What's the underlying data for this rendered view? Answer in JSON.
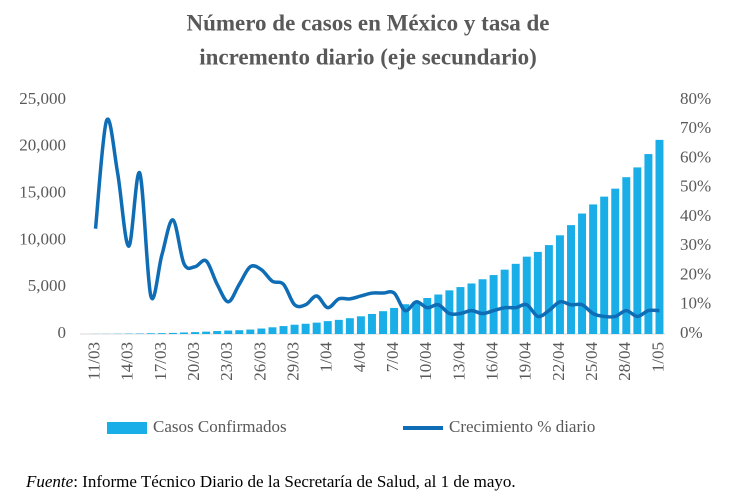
{
  "chart_data": {
    "type": "bar-line",
    "title": [
      "Número de casos en México y tasa de",
      "incremento diario (eje secundario)"
    ],
    "categories": [
      "11/03",
      null,
      null,
      "14/03",
      null,
      null,
      "17/03",
      null,
      null,
      "20/03",
      null,
      null,
      "23/03",
      null,
      null,
      "26/03",
      null,
      null,
      "29/03",
      null,
      null,
      "1/04",
      null,
      null,
      "4/04",
      null,
      null,
      "7/04",
      null,
      null,
      "10/04",
      null,
      null,
      "13/04",
      null,
      null,
      "16/04",
      null,
      null,
      "19/04",
      null,
      null,
      "22/04",
      null,
      null,
      "25/04",
      null,
      null,
      "28/04",
      null,
      null,
      "1/05"
    ],
    "series": [
      {
        "name": "Casos Confirmados",
        "type": "bar",
        "color": "#1aaee8",
        "values": [
          12,
          15,
          26,
          41,
          53,
          82,
          93,
          118,
          164,
          203,
          251,
          316,
          367,
          405,
          475,
          585,
          717,
          848,
          993,
          1094,
          1215,
          1378,
          1510,
          1688,
          1890,
          2143,
          2439,
          2785,
          3181,
          3441,
          3844,
          4219,
          4661,
          5014,
          5399,
          5847,
          6297,
          6875,
          7497,
          8261,
          8772,
          9501,
          10544,
          11633,
          12872,
          13842,
          14677,
          15529,
          16752,
          17799,
          19224,
          20739
        ]
      },
      {
        "name": "Crecimiento % diario",
        "type": "line",
        "axis": "y2",
        "color": "#0f6db5",
        "values": [
          36,
          73,
          55,
          30,
          55,
          13,
          27,
          39,
          24,
          23,
          25,
          17,
          11,
          17,
          23,
          22,
          18,
          17,
          10,
          10,
          13,
          9,
          12,
          12,
          13,
          14,
          14,
          14,
          8,
          11,
          9,
          10,
          7,
          7,
          8,
          7,
          8,
          9,
          9,
          10,
          6,
          8,
          11,
          10,
          10,
          7,
          6,
          6,
          8,
          6,
          8,
          8
        ]
      }
    ],
    "ylim": [
      0,
      25000
    ],
    "yticks": [
      0,
      {
        "value": 5000,
        "label": "5,000"
      },
      {
        "value": 10000,
        "label": "10,000"
      },
      {
        "value": 15000,
        "label": "15,000"
      },
      {
        "value": 20000,
        "label": "20,000"
      },
      {
        "value": 25000,
        "label": "25,000"
      }
    ],
    "y2lim": [
      0,
      80
    ],
    "y2ticks": [
      {
        "value": 0,
        "label": "0%"
      },
      {
        "value": 10,
        "label": "10%"
      },
      {
        "value": 20,
        "label": "20%"
      },
      {
        "value": 30,
        "label": "30%"
      },
      {
        "value": 40,
        "label": "40%"
      },
      {
        "value": 50,
        "label": "50%"
      },
      {
        "value": 60,
        "label": "60%"
      },
      {
        "value": 70,
        "label": "70%"
      },
      {
        "value": 80,
        "label": "80%"
      }
    ],
    "legend": "bottom"
  },
  "footer": {
    "label": "Fuente",
    "text": ": Informe Técnico Diario de la Secretaría de Salud, al 1 de mayo."
  }
}
